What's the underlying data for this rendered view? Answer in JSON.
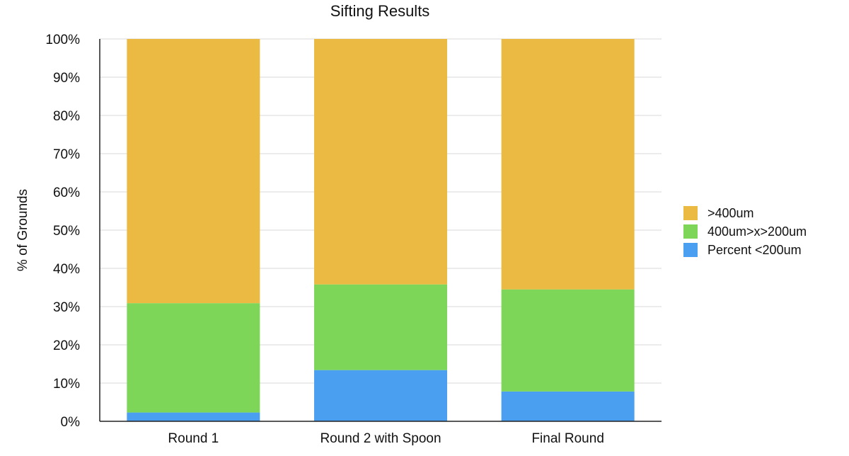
{
  "chart_data": {
    "type": "bar",
    "stacked": true,
    "title": "Sifting Results",
    "ylabel": "% of Grounds",
    "xlabel": "",
    "ylim": [
      0,
      100
    ],
    "y_ticks": [
      0,
      10,
      20,
      30,
      40,
      50,
      60,
      70,
      80,
      90,
      100
    ],
    "y_tick_labels": [
      "0%",
      "10%",
      "20%",
      "30%",
      "40%",
      "50%",
      "60%",
      "70%",
      "80%",
      "90%",
      "100%"
    ],
    "grid": true,
    "legend_position": "right",
    "categories": [
      "Round 1",
      "Round 2 with Spoon",
      "Final Round"
    ],
    "series": [
      {
        "name": "Percent <200um",
        "color": "#4a9ff0",
        "values": [
          2.3,
          13.4,
          7.8
        ]
      },
      {
        "name": "400um>x>200um",
        "color": "#7ed658",
        "values": [
          28.6,
          22.4,
          26.7
        ]
      },
      {
        "name": ">400um",
        "color": "#ebba42",
        "values": [
          69.1,
          64.2,
          65.5
        ]
      }
    ],
    "legend_order": [
      ">400um",
      "400um>x>200um",
      "Percent <200um"
    ]
  }
}
